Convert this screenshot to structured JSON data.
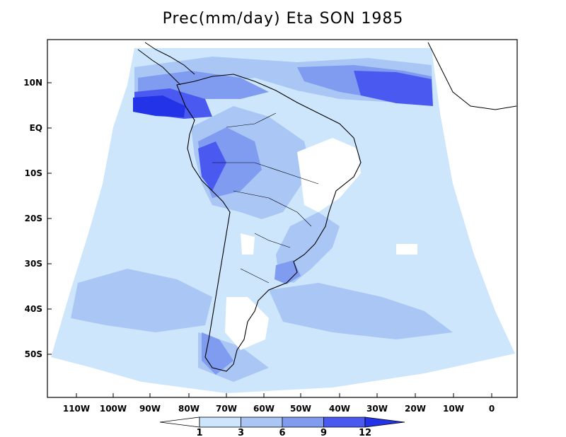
{
  "title": "Prec(mm/day) Eta SON 1985",
  "lat_labels": [
    "10N",
    "EQ",
    "10S",
    "20S",
    "30S",
    "40S",
    "50S"
  ],
  "lon_labels": [
    "110W",
    "100W",
    "90W",
    "80W",
    "70W",
    "60W",
    "50W",
    "40W",
    "30W",
    "20W",
    "10W",
    "0"
  ],
  "colorbar": {
    "levels": [
      "1",
      "3",
      "6",
      "9",
      "12"
    ],
    "colors": [
      "#ffffff",
      "#cde6fc",
      "#a9c6f5",
      "#7f9cf0",
      "#4a5af0",
      "#2233e8"
    ]
  }
}
